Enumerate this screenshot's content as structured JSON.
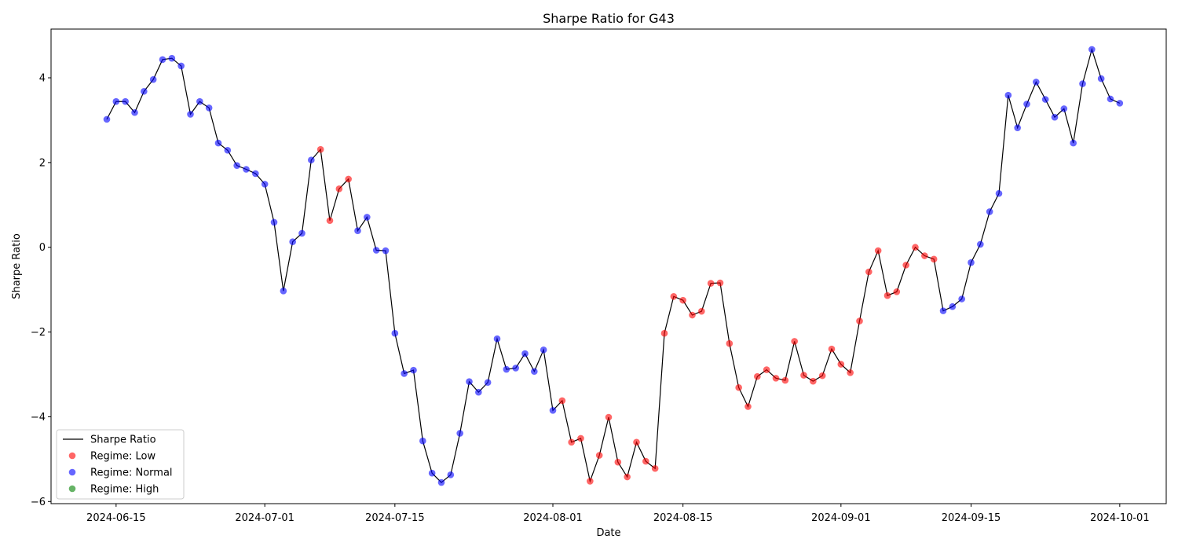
{
  "chart_data": {
    "type": "line",
    "title": "Sharpe Ratio for G43",
    "xlabel": "Date",
    "ylabel": "Sharpe Ratio",
    "x_start": "2024-06-14",
    "ylim": [
      -6.05,
      5.15
    ],
    "xlim": [
      "2024-06-08",
      "2024-10-06"
    ],
    "y_ticks": [
      -6,
      -4,
      -2,
      0,
      2,
      4
    ],
    "y_tick_labels": [
      "−6",
      "−4",
      "−2",
      "0",
      "2",
      "4"
    ],
    "x_ticks": [
      "2024-06-15",
      "2024-07-01",
      "2024-07-15",
      "2024-08-01",
      "2024-08-15",
      "2024-09-01",
      "2024-09-15",
      "2024-10-01"
    ],
    "x_tick_labels": [
      "2024-06-15",
      "2024-07-01",
      "2024-07-15",
      "2024-08-01",
      "2024-08-15",
      "2024-09-01",
      "2024-09-15",
      "2024-10-01"
    ],
    "grid": false,
    "legend_position": "bottom-left",
    "line_color": "#000000",
    "regime_colors": {
      "Low": "#ff0000",
      "Normal": "#0000ff",
      "High": "#008000"
    },
    "legend": [
      {
        "label": "Sharpe Ratio",
        "kind": "line",
        "color": "#000000"
      },
      {
        "label": "Regime: Low",
        "kind": "dot",
        "color": "#ff0000"
      },
      {
        "label": "Regime: Normal",
        "kind": "dot",
        "color": "#0000ff"
      },
      {
        "label": "Regime: High",
        "kind": "dot",
        "color": "#008000"
      }
    ],
    "series": [
      {
        "name": "Sharpe Ratio",
        "values": [
          3.02,
          3.44,
          3.44,
          3.18,
          3.68,
          3.96,
          4.43,
          4.46,
          4.28,
          3.14,
          3.44,
          3.29,
          2.46,
          2.29,
          1.93,
          1.84,
          1.74,
          1.49,
          0.59,
          -1.03,
          0.13,
          0.33,
          2.06,
          2.31,
          0.63,
          1.38,
          1.61,
          0.39,
          0.71,
          -0.07,
          -0.08,
          -2.03,
          -2.98,
          -2.9,
          -4.57,
          -5.33,
          -5.55,
          -5.37,
          -4.39,
          -3.17,
          -3.42,
          -3.19,
          -2.16,
          -2.88,
          -2.85,
          -2.51,
          -2.93,
          -2.42,
          -3.85,
          -3.62,
          -4.6,
          -4.51,
          -5.52,
          -4.91,
          -4.01,
          -5.07,
          -5.42,
          -4.6,
          -5.05,
          -5.22,
          -2.03,
          -1.16,
          -1.25,
          -1.6,
          -1.51,
          -0.85,
          -0.84,
          -2.27,
          -3.31,
          -3.76,
          -3.05,
          -2.89,
          -3.09,
          -3.14,
          -2.22,
          -3.02,
          -3.16,
          -3.03,
          -2.4,
          -2.76,
          -2.96,
          -1.74,
          -0.58,
          -0.08,
          -1.14,
          -1.05,
          -0.42,
          0.0,
          -0.2,
          -0.28,
          -1.5,
          -1.4,
          -1.22,
          -0.36,
          0.07,
          0.84,
          1.27,
          3.59,
          2.82,
          3.38,
          3.9,
          3.49,
          3.07,
          3.27,
          2.46,
          3.86,
          4.67,
          3.98,
          3.5,
          3.4
        ],
        "regimes": [
          "Normal",
          "Normal",
          "Normal",
          "Normal",
          "Normal",
          "Normal",
          "Normal",
          "Normal",
          "Normal",
          "Normal",
          "Normal",
          "Normal",
          "Normal",
          "Normal",
          "Normal",
          "Normal",
          "Normal",
          "Normal",
          "Normal",
          "Normal",
          "Normal",
          "Normal",
          "Normal",
          "Low",
          "Low",
          "Low",
          "Low",
          "Normal",
          "Normal",
          "Normal",
          "Normal",
          "Normal",
          "Normal",
          "Normal",
          "Normal",
          "Normal",
          "Normal",
          "Normal",
          "Normal",
          "Normal",
          "Normal",
          "Normal",
          "Normal",
          "Normal",
          "Normal",
          "Normal",
          "Normal",
          "Normal",
          "Normal",
          "Low",
          "Low",
          "Low",
          "Low",
          "Low",
          "Low",
          "Low",
          "Low",
          "Low",
          "Low",
          "Low",
          "Low",
          "Low",
          "Low",
          "Low",
          "Low",
          "Low",
          "Low",
          "Low",
          "Low",
          "Low",
          "Low",
          "Low",
          "Low",
          "Low",
          "Low",
          "Low",
          "Low",
          "Low",
          "Low",
          "Low",
          "Low",
          "Low",
          "Low",
          "Low",
          "Low",
          "Low",
          "Low",
          "Low",
          "Low",
          "Low",
          "Normal",
          "Normal",
          "Normal",
          "Normal",
          "Normal",
          "Normal",
          "Normal",
          "Normal",
          "Normal",
          "Normal",
          "Normal",
          "Normal",
          "Normal",
          "Normal",
          "Normal",
          "Normal",
          "Normal",
          "Normal",
          "Normal",
          "Normal"
        ]
      }
    ]
  }
}
